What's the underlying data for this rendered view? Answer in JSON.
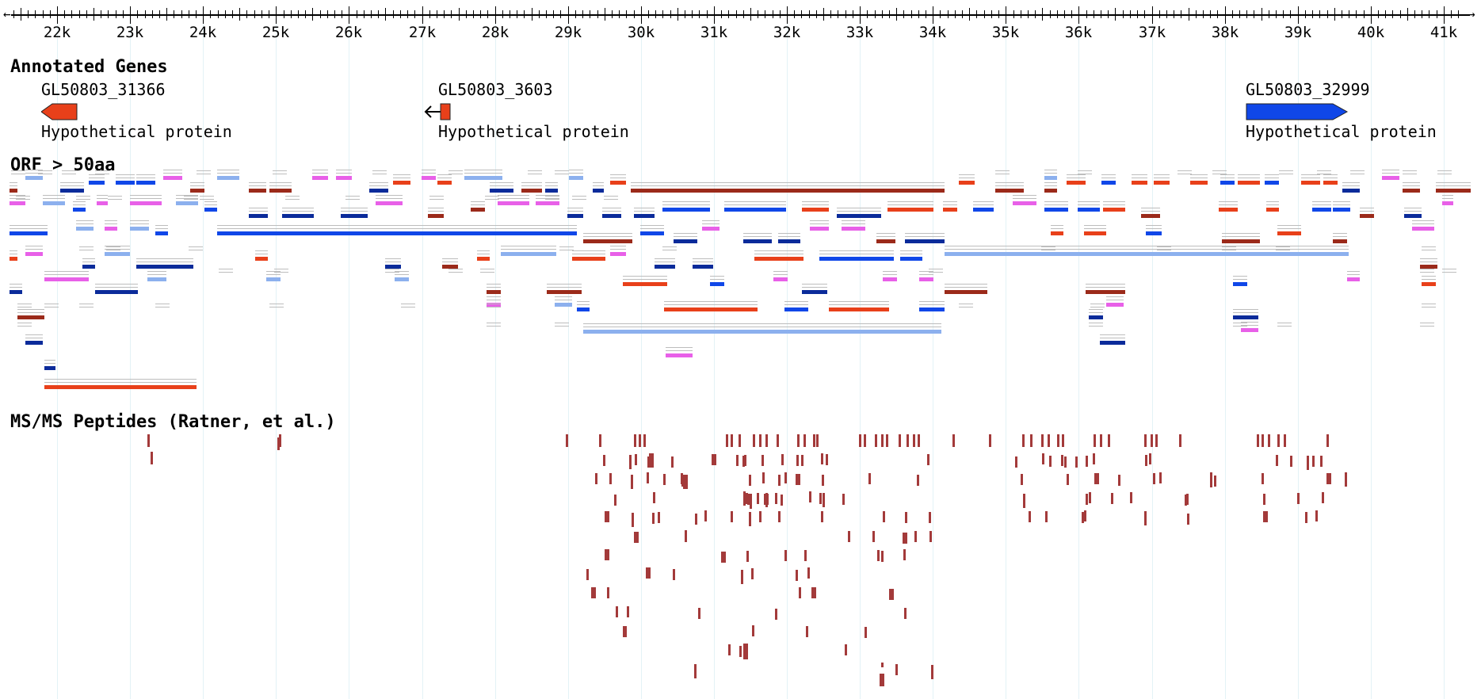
{
  "ruler": {
    "ticks": [
      "22k",
      "23k",
      "24k",
      "25k",
      "26k",
      "27k",
      "28k",
      "29k",
      "30k",
      "31k",
      "32k",
      "33k",
      "34k",
      "35k",
      "36k",
      "37k",
      "38k",
      "39k",
      "40k",
      "41k"
    ],
    "left_arrow": "←",
    "right_arrow": "→"
  },
  "tracks": {
    "genes": {
      "title": "Annotated Genes",
      "items": [
        {
          "name": "GL50803_31366",
          "description": "Hypothetical protein",
          "strand": "minus",
          "color": "#e8401a"
        },
        {
          "name": "GL50803_3603",
          "description": "Hypothetical protein",
          "strand": "minus",
          "color": "#e8401a"
        },
        {
          "name": "GL50803_32999",
          "description": "Hypothetical protein",
          "strand": "plus",
          "color": "#1047e8"
        }
      ]
    },
    "orf": {
      "title": "ORF > 50aa",
      "colors": {
        "red": "#e8401a",
        "darkred": "#9b2a1a",
        "blue": "#1047e8",
        "navy": "#0b2b9a",
        "lightblue": "#8cb0ee",
        "magenta": "#e860e8"
      }
    },
    "peptides": {
      "title": "MS/MS Peptides (Ratner, et al.)",
      "color": "#a33a3a"
    }
  }
}
